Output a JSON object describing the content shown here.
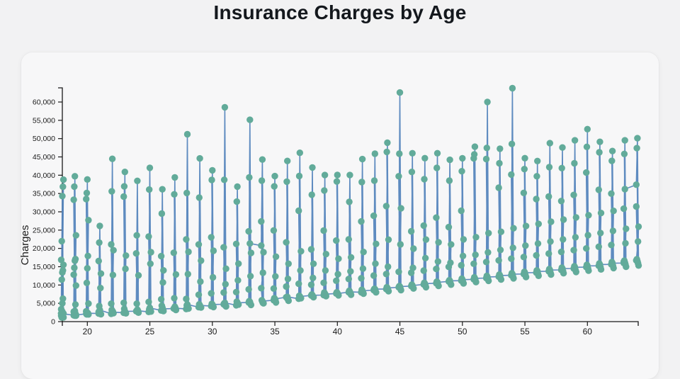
{
  "chart_data": {
    "type": "line",
    "markers": true,
    "title": "Insurance Charges by Age",
    "xlabel": "",
    "ylabel": "Charges",
    "xlim": [
      18,
      64.5
    ],
    "ylim": [
      0,
      64000
    ],
    "grid": false,
    "legend": "none",
    "x_ticks": [
      20,
      25,
      30,
      35,
      40,
      45,
      50,
      55,
      60
    ],
    "y_ticks": [
      0,
      5000,
      10000,
      15000,
      20000,
      25000,
      30000,
      35000,
      40000,
      45000,
      50000,
      55000,
      60000
    ],
    "colors": {
      "marker": "#62ab9a",
      "line": "#5585bd",
      "axis": "#1a1a1a",
      "text": "#1a1a1a",
      "title": "#14181d",
      "card_bg": "#f7f7f8",
      "page_bg": "#f2f2f3"
    },
    "series_by_age": [
      {
        "age": 18,
        "charges": [
          1608,
          4992,
          38792,
          1122,
          36850,
          2200,
          34303,
          1137,
          21984,
          1607,
          16884,
          2755,
          15518,
          1694,
          14001,
          3393,
          13417,
          2208,
          11482,
          6272,
          2203
        ]
      },
      {
        "age": 19,
        "charges": [
          1737,
          39722,
          1639,
          36898,
          2131,
          33307,
          1626,
          23568,
          1837,
          17081,
          2710,
          16640,
          1842,
          14711,
          4687,
          12829,
          2899,
          9861,
          1744
        ]
      },
      {
        "age": 20,
        "charges": [
          2145,
          38840,
          1967,
          35147,
          2211,
          33475,
          2457,
          27724,
          1980,
          17942,
          2803,
          14571,
          4915,
          10580,
          2302
        ]
      },
      {
        "age": 21,
        "charges": [
          2205,
          26140,
          2020,
          21595,
          2103,
          16577,
          2331,
          13126,
          4254,
          9182,
          2650,
          3167
        ]
      },
      {
        "age": 22,
        "charges": [
          2156,
          44470,
          2302,
          35585,
          2710,
          21098,
          2899,
          19515,
          3213,
          12731,
          4906,
          2640
        ]
      },
      {
        "age": 23,
        "charges": [
          2396,
          40904,
          2257,
          36950,
          2428,
          34167,
          2803,
          18033,
          3500,
          14426,
          5149,
          2801
        ]
      },
      {
        "age": 24,
        "charges": [
          2850,
          38450,
          2457,
          23568,
          2597,
          18648,
          3279,
          12638,
          4889,
          2974
        ]
      },
      {
        "age": 25,
        "charges": [
          2644,
          42021,
          2741,
          36085,
          3062,
          23241,
          2904,
          18972,
          3385,
          15817,
          5375,
          3757
        ]
      },
      {
        "age": 26,
        "charges": [
          3046,
          36149,
          2902,
          29523,
          3392,
          17878,
          3877,
          14001,
          4340,
          10702,
          6113,
          3490
        ]
      },
      {
        "age": 27,
        "charges": [
          3554,
          39397,
          3180,
          34779,
          3561,
          18804,
          4058,
          12890,
          6414,
          3693
        ]
      },
      {
        "age": 28,
        "charges": [
          3443,
          51195,
          3558,
          35148,
          3847,
          22478,
          4004,
          19069,
          4449,
          12982,
          6203,
          4687
        ]
      },
      {
        "age": 29,
        "charges": [
          3946,
          44600,
          3857,
          33900,
          4058,
          21082,
          4189,
          16657,
          4722,
          10928,
          7345,
          4433
        ]
      },
      {
        "age": 30,
        "charges": [
          4237,
          41337,
          3982,
          38711,
          4340,
          23045,
          4527,
          19350,
          4837,
          12105,
          7731,
          4687
        ]
      },
      {
        "age": 31,
        "charges": [
          4738,
          58571,
          4134,
          38746,
          4340,
          20296,
          4738,
          14451,
          5002,
          10226,
          7954,
          5148
        ]
      },
      {
        "age": 32,
        "charges": [
          4463,
          36898,
          4667,
          32787,
          4832,
          21223,
          5152,
          15828,
          5449,
          11288,
          8062,
          5152
        ]
      },
      {
        "age": 33,
        "charges": [
          5246,
          55135,
          4563,
          39400,
          4855,
          24667,
          5375,
          18765,
          5594,
          12430,
          8823,
          21345
        ]
      },
      {
        "age": 34,
        "charges": [
          20773,
          44280,
          5003,
          38511,
          5125,
          27375,
          5440,
          18972,
          5846,
          13352,
          9140,
          5594
        ]
      },
      {
        "age": 35,
        "charges": [
          5836,
          39750,
          5246,
          36950,
          5926,
          24915,
          6067,
          17755,
          6402,
          12347,
          9048,
          6196
        ]
      },
      {
        "age": 36,
        "charges": [
          6652,
          43900,
          5699,
          38245,
          6117,
          21659,
          6313,
          15820,
          6652,
          11674,
          9583,
          6748
        ]
      },
      {
        "age": 37,
        "charges": [
          6250,
          46113,
          6406,
          39774,
          6571,
          30284,
          6775,
          19214,
          7046,
          13981,
          10338,
          6873
        ]
      },
      {
        "age": 38,
        "charges": [
          7133,
          42112,
          6652,
          34672,
          6933,
          19749,
          7153,
          15820,
          7418,
          11946,
          10085,
          7196
        ]
      },
      {
        "age": 39,
        "charges": [
          7265,
          40050,
          6948,
          35820,
          7418,
          24869,
          7639,
          18450,
          7954,
          13974,
          10601,
          7483
        ]
      },
      {
        "age": 40,
        "charges": [
          7682,
          40055,
          7173,
          38284,
          7462,
          22144,
          7789,
          17179,
          8017,
          12950,
          11165,
          7682
        ]
      },
      {
        "age": 41,
        "charges": [
          8026,
          40050,
          7358,
          32734,
          7749,
          22478,
          8083,
          17560,
          8410,
          13725,
          11658,
          8140
        ]
      },
      {
        "age": 42,
        "charges": [
          8017,
          44400,
          7650,
          38126,
          8059,
          27375,
          8342,
          19023,
          8688,
          14478,
          11842,
          8428
        ]
      },
      {
        "age": 43,
        "charges": [
          8604,
          45863,
          7986,
          38511,
          8302,
          28923,
          8672,
          21223,
          8964,
          15828,
          12574,
          8891
        ]
      },
      {
        "age": 44,
        "charges": [
          8892,
          48885,
          8302,
          46380,
          8688,
          31565,
          9059,
          22395,
          9391,
          15006,
          13012,
          9182
        ]
      },
      {
        "age": 45,
        "charges": [
          9391,
          62593,
          8604,
          45863,
          8993,
          39725,
          9386,
          30942,
          9715,
          21098,
          13607,
          9563
        ]
      },
      {
        "age": 46,
        "charges": [
          9718,
          46000,
          9061,
          40905,
          9414,
          24671,
          9759,
          19933,
          10096,
          14692,
          13352,
          9872
        ]
      },
      {
        "age": 47,
        "charges": [
          10141,
          44650,
          9414,
          38918,
          9877,
          26236,
          10226,
          22412,
          10602,
          17352,
          13937,
          10381
        ]
      },
      {
        "age": 48,
        "charges": [
          10493,
          46000,
          9748,
          41999,
          10156,
          28415,
          10531,
          21659,
          10923,
          16420,
          14395,
          10733
        ]
      },
      {
        "age": 49,
        "charges": [
          10977,
          44200,
          10096,
          38511,
          10493,
          25810,
          10923,
          21082,
          11299,
          16085,
          14963,
          11156
        ]
      },
      {
        "age": 50,
        "charges": [
          11178,
          44641,
          10431,
          41097,
          10861,
          30284,
          11299,
          22478,
          11745,
          17942,
          15394,
          11456
        ]
      },
      {
        "age": 51,
        "charges": [
          11554,
          47783,
          10792,
          45702,
          11232,
          44585,
          11658,
          23065,
          12096,
          18246,
          15820,
          11833
        ]
      },
      {
        "age": 52,
        "charges": [
          11911,
          60021,
          11152,
          47462,
          11580,
          44423,
          12044,
          24180,
          12475,
          18903,
          16290,
          12222
        ]
      },
      {
        "age": 53,
        "charges": [
          12269,
          47254,
          11488,
          43254,
          11945,
          36580,
          12404,
          24535,
          12852,
          19594,
          16720,
          12609
        ]
      },
      {
        "age": 54,
        "charges": [
          12650,
          63770,
          11833,
          48549,
          12306,
          40182,
          12774,
          25517,
          13224,
          20167,
          17184,
          12982
        ]
      },
      {
        "age": 55,
        "charges": [
          13012,
          44660,
          12181,
          41676,
          12668,
          35160,
          13143,
          26109,
          13604,
          20765,
          17652,
          13352
        ]
      },
      {
        "age": 56,
        "charges": [
          13394,
          43878,
          12523,
          39722,
          13031,
          33475,
          13506,
          26696,
          13986,
          21323,
          18113,
          13725
        ]
      },
      {
        "age": 57,
        "charges": [
          13764,
          48750,
          12872,
          42211,
          13394,
          34166,
          13880,
          27290,
          14366,
          21896,
          18582,
          14096
        ]
      },
      {
        "age": 58,
        "charges": [
          14133,
          47580,
          13224,
          41949,
          13760,
          32950,
          14251,
          27880,
          14749,
          22462,
          19053,
          14474
        ]
      },
      {
        "age": 59,
        "charges": [
          14512,
          49520,
          13571,
          43254,
          14128,
          34611,
          14622,
          28476,
          15131,
          23045,
          19525,
          14847
        ]
      },
      {
        "age": 60,
        "charges": [
          14882,
          52591,
          13919,
          47750,
          14494,
          40720,
          14996,
          29070,
          15513,
          23620,
          19996,
          15225
        ]
      },
      {
        "age": 61,
        "charges": [
          15257,
          49130,
          14271,
          46255,
          14862,
          36021,
          15370,
          29665,
          15897,
          24205,
          20467,
          15602
        ]
      },
      {
        "age": 62,
        "charges": [
          15632,
          46610,
          14623,
          43921,
          15231,
          34970,
          15745,
          30260,
          16281,
          24790,
          20939,
          15977
        ]
      },
      {
        "age": 63,
        "charges": [
          16009,
          49520,
          14975,
          45820,
          15600,
          30855,
          16122,
          25375,
          16667,
          21410,
          16355,
          36195
        ]
      },
      {
        "age": 64,
        "charges": [
          37405,
          50100,
          15327,
          47403,
          15969,
          31450,
          16500,
          25960,
          17052,
          21882,
          16730
        ]
      }
    ]
  }
}
